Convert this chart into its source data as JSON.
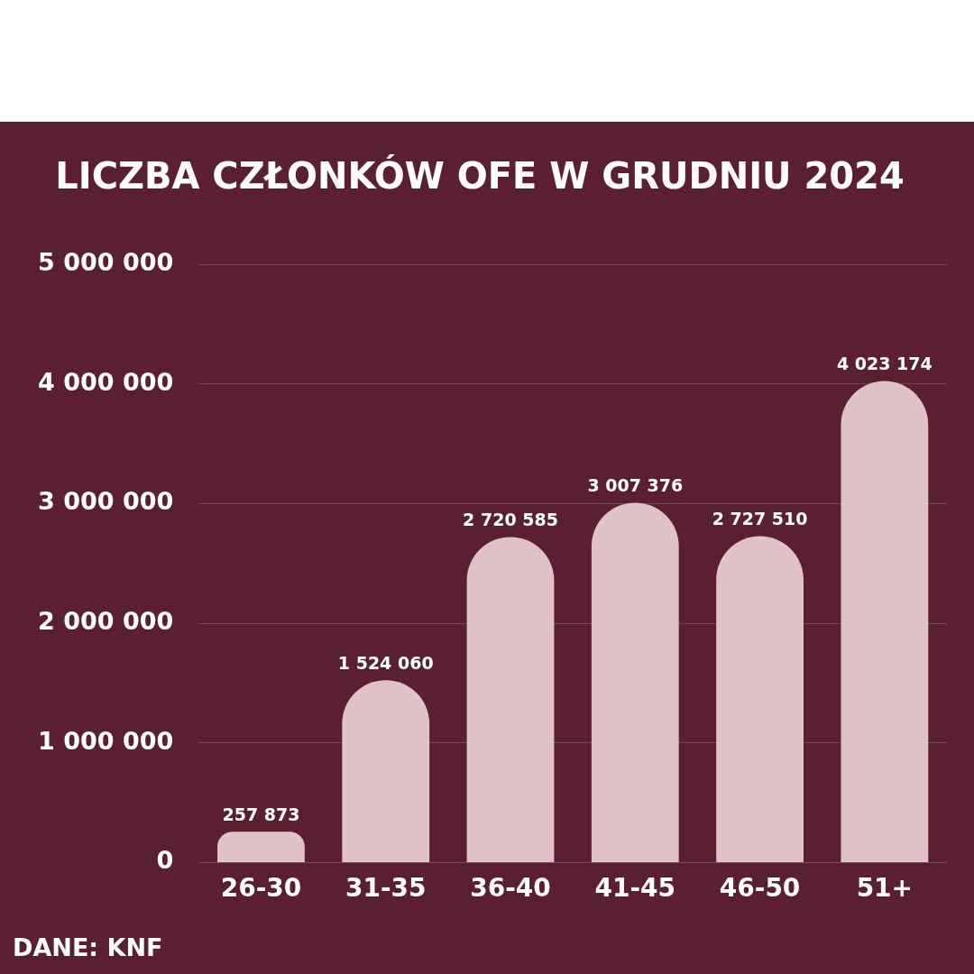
{
  "chart_data": {
    "type": "bar",
    "title": "LICZBA CZŁONKÓW OFE W GRUDNIU 2024",
    "categories": [
      "26-30",
      "31-35",
      "36-40",
      "41-45",
      "46-50",
      "51+"
    ],
    "values": [
      257873,
      1524060,
      2720585,
      3007376,
      2727510,
      4023174
    ],
    "value_labels": [
      "257 873",
      "1 524 060",
      "2 720 585",
      "3 007 376",
      "2 727 510",
      "4 023 174"
    ],
    "color": "#e0c3c9",
    "ylim": [
      0,
      5000000
    ],
    "yticks": [
      {
        "value": 0,
        "label": "0"
      },
      {
        "value": 1000000,
        "label": "1 000 000"
      },
      {
        "value": 2000000,
        "label": "2 000 000"
      },
      {
        "value": 3000000,
        "label": "3 000 000"
      },
      {
        "value": 4000000,
        "label": "4 000 000"
      },
      {
        "value": 5000000,
        "label": "5 000 000"
      }
    ],
    "grid": "y",
    "legend": false,
    "annotations": [
      "DANE: KNF"
    ]
  }
}
